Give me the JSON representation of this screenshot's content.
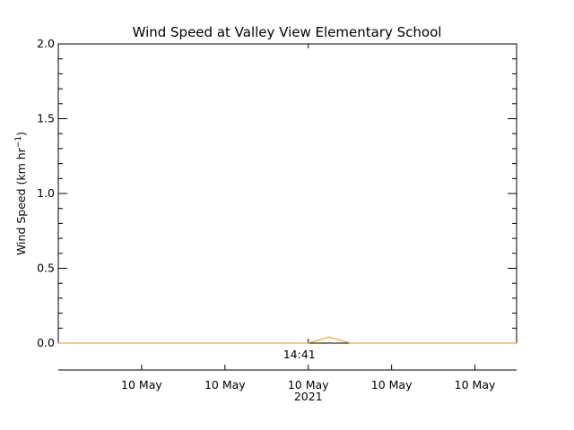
{
  "chart_data": {
    "type": "line",
    "title": "Wind Speed at Valley View Elementary School",
    "ylabel": {
      "base": "Wind Speed (km hr",
      "sup": "−1",
      "close": ")"
    },
    "xlabel": "",
    "ylim": [
      0.0,
      2.0
    ],
    "y_ticks": [
      {
        "value": 0.0,
        "label": "0.0"
      },
      {
        "value": 0.5,
        "label": "0.5"
      },
      {
        "value": 1.0,
        "label": "1.0"
      },
      {
        "value": 1.5,
        "label": "1.5"
      },
      {
        "value": 2.0,
        "label": "2.0"
      }
    ],
    "y_minor_step": 0.1,
    "xlim": [
      "10 May 2021 14:35",
      "10 May 2021 14:46"
    ],
    "x_top_ticks": [
      "10 May 2021 14:41"
    ],
    "x_top_tick_label": "14:41",
    "x_bottom_ticks": [
      {
        "time": "10 May 2021 14:37",
        "label": "10 May"
      },
      {
        "time": "10 May 2021 14:39",
        "label": "10 May"
      },
      {
        "time": "10 May 2021 14:41",
        "label": "10 May"
      },
      {
        "time": "10 May 2021 14:43",
        "label": "10 May"
      },
      {
        "time": "10 May 2021 14:45",
        "label": "10 May"
      }
    ],
    "x_bottom_year": {
      "time": "10 May 2021 14:41",
      "label": "2021"
    },
    "series_color": "#ff8c00",
    "series": [
      {
        "x": [
          "10 May 2021 14:35",
          "10 May 2021 14:41",
          "10 May 2021 14:41:30",
          "10 May 2021 14:42",
          "10 May 2021 14:46"
        ],
        "y": [
          0.0,
          0.0,
          0.04,
          0.0,
          0.0
        ]
      }
    ]
  }
}
